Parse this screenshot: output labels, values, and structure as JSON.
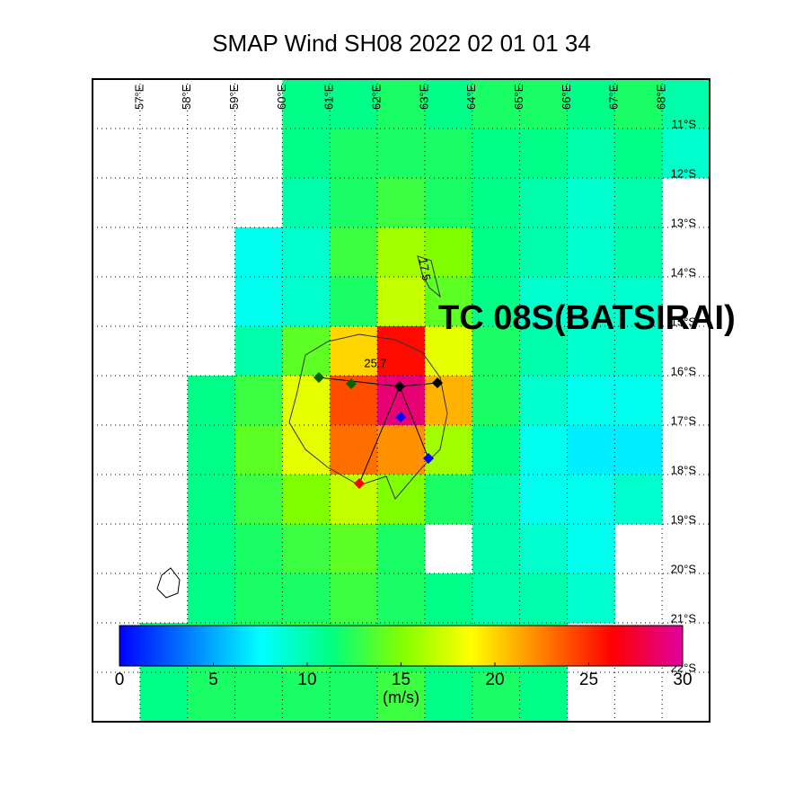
{
  "chart_data": {
    "type": "heatmap",
    "title": "SMAP Wind  SH08  2022 02 01 01 34",
    "annotation": "TC 08S(BATSIRAI)",
    "contour_labels": [
      "17.5",
      "25.7"
    ],
    "xlim": [
      56,
      69
    ],
    "ylim": [
      -23,
      -10
    ],
    "xticks": [
      {
        "value": 57,
        "label": "57°E"
      },
      {
        "value": 58,
        "label": "58°E"
      },
      {
        "value": 59,
        "label": "59°E"
      },
      {
        "value": 60,
        "label": "60°E"
      },
      {
        "value": 61,
        "label": "61°E"
      },
      {
        "value": 62,
        "label": "62°E"
      },
      {
        "value": 63,
        "label": "63°E"
      },
      {
        "value": 64,
        "label": "64°E"
      },
      {
        "value": 65,
        "label": "65°E"
      },
      {
        "value": 66,
        "label": "66°E"
      },
      {
        "value": 67,
        "label": "67°E"
      },
      {
        "value": 68,
        "label": "68°E"
      }
    ],
    "yticks": [
      {
        "value": -11,
        "label": "11°S"
      },
      {
        "value": -12,
        "label": "12°S"
      },
      {
        "value": -13,
        "label": "13°S"
      },
      {
        "value": -14,
        "label": "14°S"
      },
      {
        "value": -15,
        "label": "15°S"
      },
      {
        "value": -16,
        "label": "16°S"
      },
      {
        "value": -17,
        "label": "17°S"
      },
      {
        "value": -18,
        "label": "18°S"
      },
      {
        "value": -19,
        "label": "19°S"
      },
      {
        "value": -20,
        "label": "20°S"
      },
      {
        "value": -21,
        "label": "21°S"
      },
      {
        "value": -22,
        "label": "22°S"
      }
    ],
    "grid": true,
    "lons": [
      56.5,
      57.5,
      58.5,
      59.5,
      60.5,
      61.5,
      62.5,
      63.5,
      64.5,
      65.5,
      66.5,
      67.5,
      68.5
    ],
    "lats": [
      -10.5,
      -11.5,
      -12.5,
      -13.5,
      -14.5,
      -15.5,
      -16.5,
      -17.5,
      -18.5,
      -19.5,
      -20.5,
      -21.5,
      -22.5
    ],
    "values": [
      [
        null,
        null,
        null,
        null,
        11,
        11,
        12,
        11,
        12,
        12,
        11,
        12,
        10
      ],
      [
        null,
        null,
        null,
        null,
        11,
        12,
        12,
        12,
        11,
        11,
        10,
        11,
        9
      ],
      [
        null,
        null,
        null,
        null,
        10,
        12,
        13,
        12,
        11,
        10,
        9,
        10,
        null
      ],
      [
        null,
        null,
        null,
        8,
        9,
        13,
        16,
        15,
        11,
        10,
        9,
        10,
        null
      ],
      [
        null,
        null,
        null,
        8,
        9,
        12,
        17,
        14,
        11,
        9,
        9,
        9,
        null
      ],
      [
        null,
        null,
        null,
        10,
        14,
        20,
        26,
        18,
        12,
        10,
        9,
        9,
        null
      ],
      [
        null,
        null,
        11,
        13,
        18,
        24,
        29,
        21,
        12,
        9,
        8,
        8,
        null
      ],
      [
        null,
        null,
        11,
        14,
        18,
        23,
        22,
        16,
        11,
        8,
        7,
        7,
        null
      ],
      [
        null,
        null,
        11,
        13,
        15,
        17,
        15,
        12,
        10,
        8,
        8,
        9,
        null
      ],
      [
        null,
        null,
        11,
        12,
        13,
        14,
        12,
        null,
        10,
        9,
        8,
        null,
        null
      ],
      [
        null,
        null,
        11,
        12,
        12,
        13,
        12,
        11,
        10,
        10,
        9,
        null,
        null
      ],
      [
        null,
        11,
        12,
        12,
        13,
        12,
        12,
        11,
        11,
        11,
        null,
        null,
        null
      ],
      [
        null,
        11,
        12,
        12,
        12,
        12,
        13,
        11,
        12,
        11,
        null,
        null,
        null
      ]
    ],
    "colorbar": {
      "range": [
        0,
        30
      ],
      "ticks": [
        0,
        5,
        10,
        15,
        20,
        25,
        30
      ],
      "label": "(m/s)",
      "colors": [
        "#0000ff",
        "#0080ff",
        "#00ffff",
        "#00ff80",
        "#80ff00",
        "#ffff00",
        "#ff8000",
        "#ff0000",
        "#e000a0"
      ]
    }
  }
}
